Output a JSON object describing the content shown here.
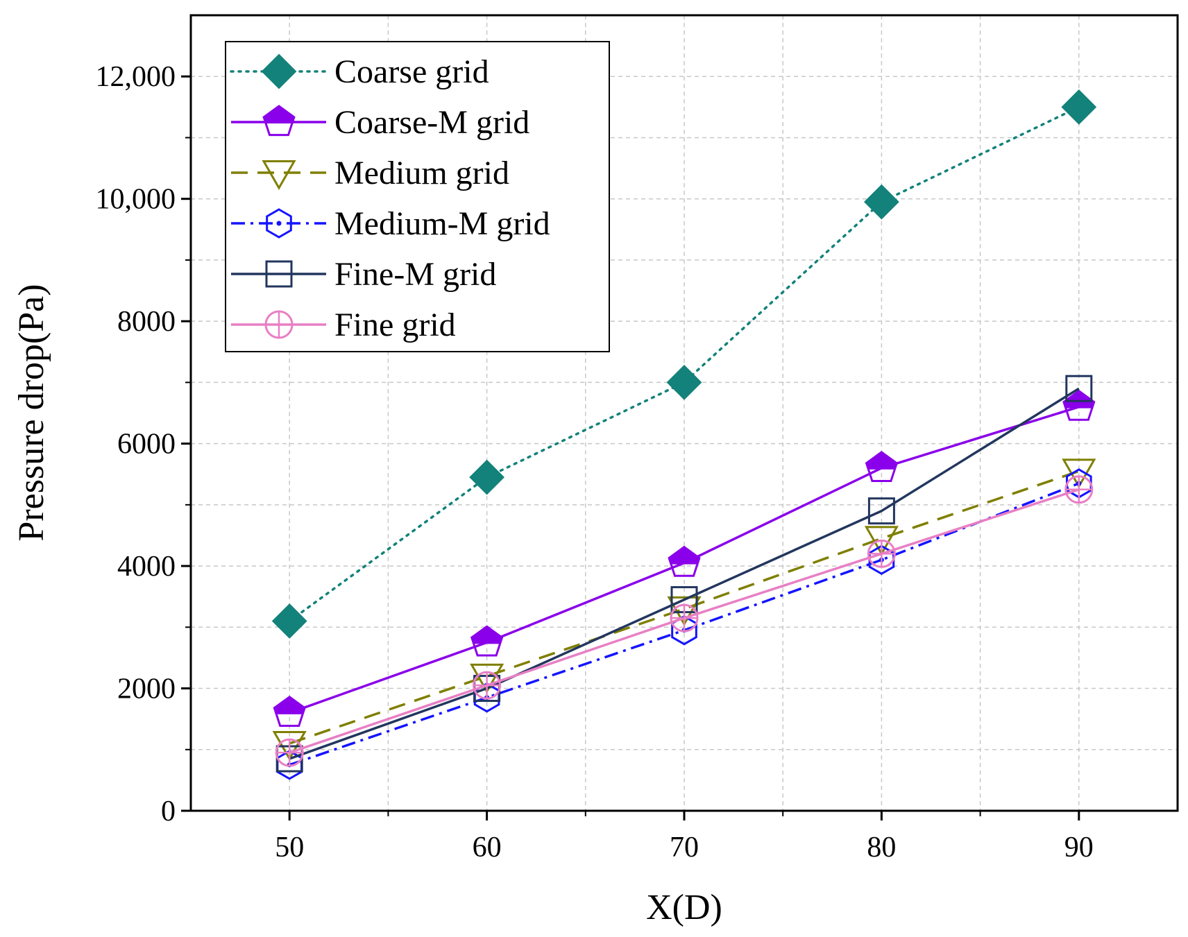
{
  "chart_data": {
    "type": "line",
    "title": "",
    "xlabel": "X(D)",
    "ylabel": "Pressure drop(Pa)",
    "x": [
      50,
      60,
      70,
      80,
      90
    ],
    "xlim": [
      45,
      95
    ],
    "ylim": [
      0,
      13000
    ],
    "xticks": [
      50,
      60,
      70,
      80,
      90
    ],
    "xtick_labels": [
      "50",
      "60",
      "70",
      "80",
      "90"
    ],
    "yticks": [
      0,
      2000,
      4000,
      6000,
      8000,
      10000,
      12000
    ],
    "ytick_labels": [
      "0",
      "2000",
      "4000",
      "6000",
      "8000",
      "10,000",
      "12,000"
    ],
    "grid": true,
    "legend_position": "top-left",
    "series": [
      {
        "name": "Coarse grid",
        "color": "#13827a",
        "dash": "dotted",
        "marker": "diamond-filled",
        "values": [
          3100,
          5450,
          7000,
          9950,
          11500
        ]
      },
      {
        "name": "Coarse-M grid",
        "color": "#8a00ea",
        "dash": "solid",
        "marker": "pentagon-half",
        "values": [
          1600,
          2750,
          4050,
          5600,
          6600
        ]
      },
      {
        "name": "Medium grid",
        "color": "#7f7f00",
        "dash": "dashed",
        "marker": "triangle-down-open",
        "values": [
          1100,
          2200,
          3300,
          4450,
          5550
        ]
      },
      {
        "name": "Medium-M grid",
        "color": "#1414ff",
        "dash": "dashdot",
        "marker": "hexagon-dot-open",
        "values": [
          750,
          1850,
          2950,
          4100,
          5350
        ]
      },
      {
        "name": "Fine-M grid",
        "color": "#22365e",
        "dash": "solid",
        "marker": "square-open",
        "values": [
          850,
          2000,
          3450,
          4900,
          6900
        ]
      },
      {
        "name": "Fine grid",
        "color": "#e87fc4",
        "dash": "solid",
        "marker": "circle-plus-open",
        "values": [
          950,
          2050,
          3150,
          4200,
          5250
        ]
      }
    ]
  }
}
